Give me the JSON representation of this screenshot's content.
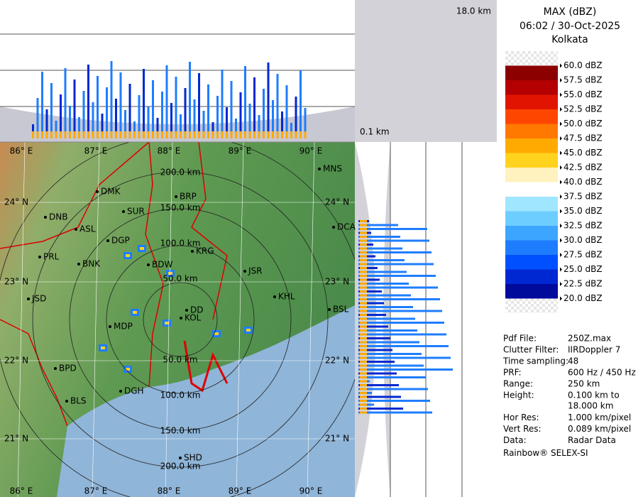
{
  "header": {
    "title": "MAX (dBZ)",
    "datetime": "06:02 / 30-Oct-2025",
    "site": "Kolkata"
  },
  "height_labels": {
    "top": "18.0 km",
    "bottom": "0.1 km"
  },
  "legend": [
    {
      "label": "60.0 dBZ",
      "color": "checker"
    },
    {
      "label": "57.5 dBZ",
      "color": "#8c0000"
    },
    {
      "label": "55.0 dBZ",
      "color": "#b40000"
    },
    {
      "label": "52.5 dBZ",
      "color": "#e01400"
    },
    {
      "label": "50.0 dBZ",
      "color": "#ff4600"
    },
    {
      "label": "47.5 dBZ",
      "color": "#ff7800"
    },
    {
      "label": "45.0 dBZ",
      "color": "#ffaa00"
    },
    {
      "label": "42.5 dBZ",
      "color": "#ffd21e"
    },
    {
      "label": "40.0 dBZ",
      "color": "#fff2be"
    },
    {
      "label": "37.5 dBZ",
      "color": "#ffffff"
    },
    {
      "label": "35.0 dBZ",
      "color": "#a0e6ff"
    },
    {
      "label": "32.5 dBZ",
      "color": "#6ecdff"
    },
    {
      "label": "30.0 dBZ",
      "color": "#3ca5ff"
    },
    {
      "label": "27.5 dBZ",
      "color": "#1e7dff"
    },
    {
      "label": "25.0 dBZ",
      "color": "#0050ff"
    },
    {
      "label": "22.5 dBZ",
      "color": "#0028d2"
    },
    {
      "label": "20.0 dBZ",
      "color": "#000a9b"
    }
  ],
  "info": [
    {
      "label": "Pdf File:",
      "value": "250Z.max"
    },
    {
      "label": "Clutter Filter:",
      "value": "IIRDoppler 7"
    },
    {
      "label": "Time sampling:",
      "value": "48"
    },
    {
      "label": "PRF:",
      "value": "600 Hz / 450 Hz"
    },
    {
      "label": "Range:",
      "value": "250 km"
    },
    {
      "label": "Height:",
      "value": [
        "0.100 km to",
        "18.000 km"
      ]
    },
    {
      "label": "Hor Res:",
      "value": "1.000 km/pixel"
    },
    {
      "label": "Vert Res:",
      "value": "0.089 km/pixel"
    },
    {
      "label": "Data:",
      "value": "Radar Data"
    }
  ],
  "footer": "Rainbow® SELEX-SI",
  "cities": [
    "MNS",
    "BRP",
    "DMK",
    "SUR",
    "DNB",
    "ASL",
    "DGP",
    "KRG",
    "PRL",
    "BNK",
    "BDW",
    "JSR",
    "KHL",
    "JSD",
    "DCA",
    "BSL",
    "DD",
    "KOL",
    "MDP",
    "BPD",
    "DGH",
    "BLS",
    "SHD"
  ],
  "longitudes": [
    "86° E",
    "87° E",
    "88° E",
    "89° E",
    "90° E"
  ],
  "latitudes": [
    "24° N",
    "23° N",
    "22° N",
    "21° N"
  ],
  "range_labels": [
    "200.0 km",
    "150.0 km",
    "100.0 km",
    "50.0 km",
    "50.0 km",
    "100.0 km",
    "150.0 km",
    "200.0 km"
  ]
}
